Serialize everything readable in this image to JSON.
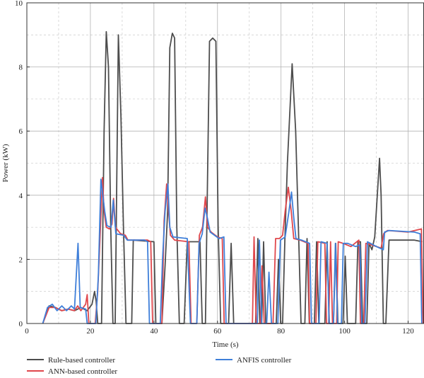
{
  "chart_data": {
    "type": "line",
    "xlabel": "Time (s)",
    "ylabel": "Power (kW)",
    "xlim": [
      0,
      125
    ],
    "ylim": [
      0,
      10
    ],
    "x_ticks": [
      0,
      20,
      40,
      60,
      80,
      100,
      120
    ],
    "y_ticks": [
      0,
      2,
      4,
      6,
      8,
      10
    ],
    "grid": "major solid, minor dashed",
    "legend_position": "bottom",
    "series": [
      {
        "name": "Rule-based controller",
        "color": "#4d4d4d",
        "points": [
          [
            5,
            0
          ],
          [
            7,
            0.55
          ],
          [
            9,
            0.5
          ],
          [
            11,
            0.4
          ],
          [
            13,
            0.45
          ],
          [
            15,
            0.4
          ],
          [
            17,
            0.5
          ],
          [
            19,
            0.4
          ],
          [
            20.5,
            0.6
          ],
          [
            21.3,
            1.0
          ],
          [
            21.8,
            0.7
          ],
          [
            22.3,
            0
          ],
          [
            23.5,
            0
          ],
          [
            24.3,
            6
          ],
          [
            25,
            9.1
          ],
          [
            25.7,
            8
          ],
          [
            26.4,
            3
          ],
          [
            27.1,
            0
          ],
          [
            27.8,
            0
          ],
          [
            28.8,
            9.0
          ],
          [
            29.6,
            6.5
          ],
          [
            30.4,
            3
          ],
          [
            31.2,
            0
          ],
          [
            33,
            0
          ],
          [
            33.5,
            2.6
          ],
          [
            40,
            2.55
          ],
          [
            40.6,
            0
          ],
          [
            42.5,
            0
          ],
          [
            43.5,
            1.8
          ],
          [
            44.3,
            3.5
          ],
          [
            45,
            8.6
          ],
          [
            45.8,
            9.05
          ],
          [
            46.5,
            8.9
          ],
          [
            47.2,
            3
          ],
          [
            48,
            0
          ],
          [
            49.5,
            0
          ],
          [
            50.5,
            2.55
          ],
          [
            54.5,
            2.55
          ],
          [
            55.2,
            0
          ],
          [
            56.2,
            0
          ],
          [
            57.5,
            8.8
          ],
          [
            58.5,
            8.9
          ],
          [
            59.5,
            8.8
          ],
          [
            60.2,
            3
          ],
          [
            61,
            0
          ],
          [
            63.5,
            0
          ],
          [
            64.3,
            2.5
          ],
          [
            65.1,
            0
          ],
          [
            72,
            0
          ],
          [
            72.7,
            2.65
          ],
          [
            73.3,
            0
          ],
          [
            73.9,
            0
          ],
          [
            74.5,
            2.55
          ],
          [
            75.2,
            0
          ],
          [
            78.5,
            0
          ],
          [
            79.2,
            2.0
          ],
          [
            79.9,
            0
          ],
          [
            80.5,
            0
          ],
          [
            81.2,
            2.6
          ],
          [
            82,
            5
          ],
          [
            83.5,
            8.1
          ],
          [
            84.6,
            6
          ],
          [
            85.6,
            2.5
          ],
          [
            86.3,
            0
          ],
          [
            87.5,
            0
          ],
          [
            88.2,
            2.65
          ],
          [
            88.9,
            0
          ],
          [
            90.5,
            0
          ],
          [
            91.2,
            2.55
          ],
          [
            91.9,
            0
          ],
          [
            93.8,
            0
          ],
          [
            94.5,
            2.55
          ],
          [
            95.2,
            0
          ],
          [
            96.5,
            0
          ],
          [
            97.2,
            2.5
          ],
          [
            97.9,
            0
          ],
          [
            99.5,
            0
          ],
          [
            100.2,
            2.1
          ],
          [
            100.9,
            0
          ],
          [
            103.5,
            0
          ],
          [
            104.2,
            2.55
          ],
          [
            105,
            2.55
          ],
          [
            105.7,
            0
          ],
          [
            107,
            0
          ],
          [
            107.7,
            2.5
          ],
          [
            108.6,
            2.3
          ],
          [
            109.5,
            2.7
          ],
          [
            110.3,
            4
          ],
          [
            111,
            5.15
          ],
          [
            111.5,
            4
          ],
          [
            112.2,
            0
          ],
          [
            113,
            0
          ],
          [
            114,
            2.6
          ],
          [
            122,
            2.6
          ],
          [
            124.5,
            2.55
          ]
        ]
      },
      {
        "name": "ANN-based controller",
        "color": "#e0474c",
        "points": [
          [
            5,
            0
          ],
          [
            7,
            0.5
          ],
          [
            9,
            0.5
          ],
          [
            11,
            0.4
          ],
          [
            13,
            0.45
          ],
          [
            15,
            0.4
          ],
          [
            16,
            0.55
          ],
          [
            17,
            0.4
          ],
          [
            18.5,
            0.6
          ],
          [
            19,
            0.9
          ],
          [
            19.5,
            0
          ],
          [
            21.5,
            0
          ],
          [
            22.3,
            1.0
          ],
          [
            23,
            2.6
          ],
          [
            23.8,
            4.55
          ],
          [
            24.3,
            3.5
          ],
          [
            25,
            3.0
          ],
          [
            26,
            2.95
          ],
          [
            26.8,
            3.1
          ],
          [
            27.3,
            3.9
          ],
          [
            27.9,
            3.0
          ],
          [
            29.5,
            2.8
          ],
          [
            31,
            2.75
          ],
          [
            31.8,
            2.6
          ],
          [
            38,
            2.6
          ],
          [
            39,
            2.55
          ],
          [
            39.6,
            0
          ],
          [
            42.5,
            0
          ],
          [
            43.2,
            3.2
          ],
          [
            44,
            4.35
          ],
          [
            44.6,
            3.5
          ],
          [
            45.2,
            2.75
          ],
          [
            46.5,
            2.6
          ],
          [
            51,
            2.55
          ],
          [
            51.7,
            0
          ],
          [
            53.5,
            0
          ],
          [
            54.3,
            2.75
          ],
          [
            55.3,
            3.0
          ],
          [
            56.2,
            3.95
          ],
          [
            56.9,
            3.0
          ],
          [
            58,
            2.85
          ],
          [
            60,
            2.7
          ],
          [
            61.5,
            2.65
          ],
          [
            62.1,
            0
          ],
          [
            71,
            0
          ],
          [
            71.5,
            2.7
          ],
          [
            72.2,
            0
          ],
          [
            73.5,
            0
          ],
          [
            74,
            1.8
          ],
          [
            74.7,
            0
          ],
          [
            77.5,
            0
          ],
          [
            78.3,
            2.65
          ],
          [
            79.5,
            2.65
          ],
          [
            80.5,
            2.75
          ],
          [
            81.3,
            3.5
          ],
          [
            82.3,
            4.25
          ],
          [
            83.2,
            3.5
          ],
          [
            84,
            2.65
          ],
          [
            86,
            2.6
          ],
          [
            88.5,
            2.5
          ],
          [
            89,
            0
          ],
          [
            91,
            0
          ],
          [
            91.6,
            2.55
          ],
          [
            93.8,
            2.5
          ],
          [
            94.3,
            0
          ],
          [
            95,
            0
          ],
          [
            95.6,
            2.55
          ],
          [
            96.2,
            0
          ],
          [
            97.5,
            0
          ],
          [
            98,
            2.55
          ],
          [
            99.5,
            2.5
          ],
          [
            102,
            2.4
          ],
          [
            104.5,
            2.6
          ],
          [
            105,
            0
          ],
          [
            106,
            0
          ],
          [
            106.7,
            2.5
          ],
          [
            108.5,
            2.45
          ],
          [
            111.5,
            2.35
          ],
          [
            112.3,
            2.8
          ],
          [
            113.5,
            2.9
          ],
          [
            120,
            2.85
          ],
          [
            124.2,
            2.95
          ],
          [
            124.7,
            0
          ]
        ]
      },
      {
        "name": "ANFIS controller",
        "color": "#3f7fd9",
        "points": [
          [
            5,
            0
          ],
          [
            6.5,
            0.5
          ],
          [
            8,
            0.6
          ],
          [
            9.5,
            0.4
          ],
          [
            11,
            0.55
          ],
          [
            12.5,
            0.4
          ],
          [
            14,
            0.55
          ],
          [
            15,
            0.45
          ],
          [
            16.1,
            2.5
          ],
          [
            16.8,
            0.5
          ],
          [
            18.5,
            0.45
          ],
          [
            19,
            0
          ],
          [
            21.7,
            0
          ],
          [
            22.5,
            1.5
          ],
          [
            23.3,
            4.5
          ],
          [
            24.5,
            3.5
          ],
          [
            25.2,
            3.05
          ],
          [
            26.5,
            3.0
          ],
          [
            27.2,
            3.85
          ],
          [
            28,
            2.8
          ],
          [
            30.5,
            2.75
          ],
          [
            31.6,
            2.6
          ],
          [
            37,
            2.6
          ],
          [
            38,
            2.55
          ],
          [
            38.6,
            0
          ],
          [
            42,
            0
          ],
          [
            42.7,
            2.0
          ],
          [
            43.5,
            3.5
          ],
          [
            44.4,
            4.35
          ],
          [
            45,
            3.0
          ],
          [
            46,
            2.7
          ],
          [
            50.5,
            2.65
          ],
          [
            51.5,
            0
          ],
          [
            53.5,
            0
          ],
          [
            54.2,
            2.5
          ],
          [
            55.2,
            2.8
          ],
          [
            56.1,
            3.6
          ],
          [
            56.8,
            3.3
          ],
          [
            57.7,
            2.85
          ],
          [
            60.5,
            2.65
          ],
          [
            62,
            2.7
          ],
          [
            62.7,
            0
          ],
          [
            72.5,
            0
          ],
          [
            73.2,
            2.6
          ],
          [
            73.9,
            0
          ],
          [
            75.5,
            0
          ],
          [
            76.2,
            1.6
          ],
          [
            77,
            0
          ],
          [
            79,
            0
          ],
          [
            79.8,
            2.6
          ],
          [
            81.3,
            2.7
          ],
          [
            82.5,
            3.5
          ],
          [
            83.3,
            4.1
          ],
          [
            84,
            3.3
          ],
          [
            84.7,
            2.65
          ],
          [
            86.5,
            2.6
          ],
          [
            89,
            2.5
          ],
          [
            89.6,
            0
          ],
          [
            92,
            0
          ],
          [
            92.6,
            2.55
          ],
          [
            94.5,
            2.5
          ],
          [
            95.1,
            0
          ],
          [
            96.5,
            0
          ],
          [
            97.1,
            2.5
          ],
          [
            97.8,
            0
          ],
          [
            99,
            0
          ],
          [
            99.6,
            2.5
          ],
          [
            101,
            2.5
          ],
          [
            103.5,
            2.4
          ],
          [
            104.8,
            2.45
          ],
          [
            105.4,
            0
          ],
          [
            106.4,
            0
          ],
          [
            107.2,
            2.55
          ],
          [
            110,
            2.4
          ],
          [
            112.2,
            2.3
          ],
          [
            112.6,
            2.85
          ],
          [
            114,
            2.9
          ],
          [
            122,
            2.85
          ],
          [
            123.8,
            2.8
          ],
          [
            124.3,
            0
          ]
        ]
      }
    ]
  }
}
